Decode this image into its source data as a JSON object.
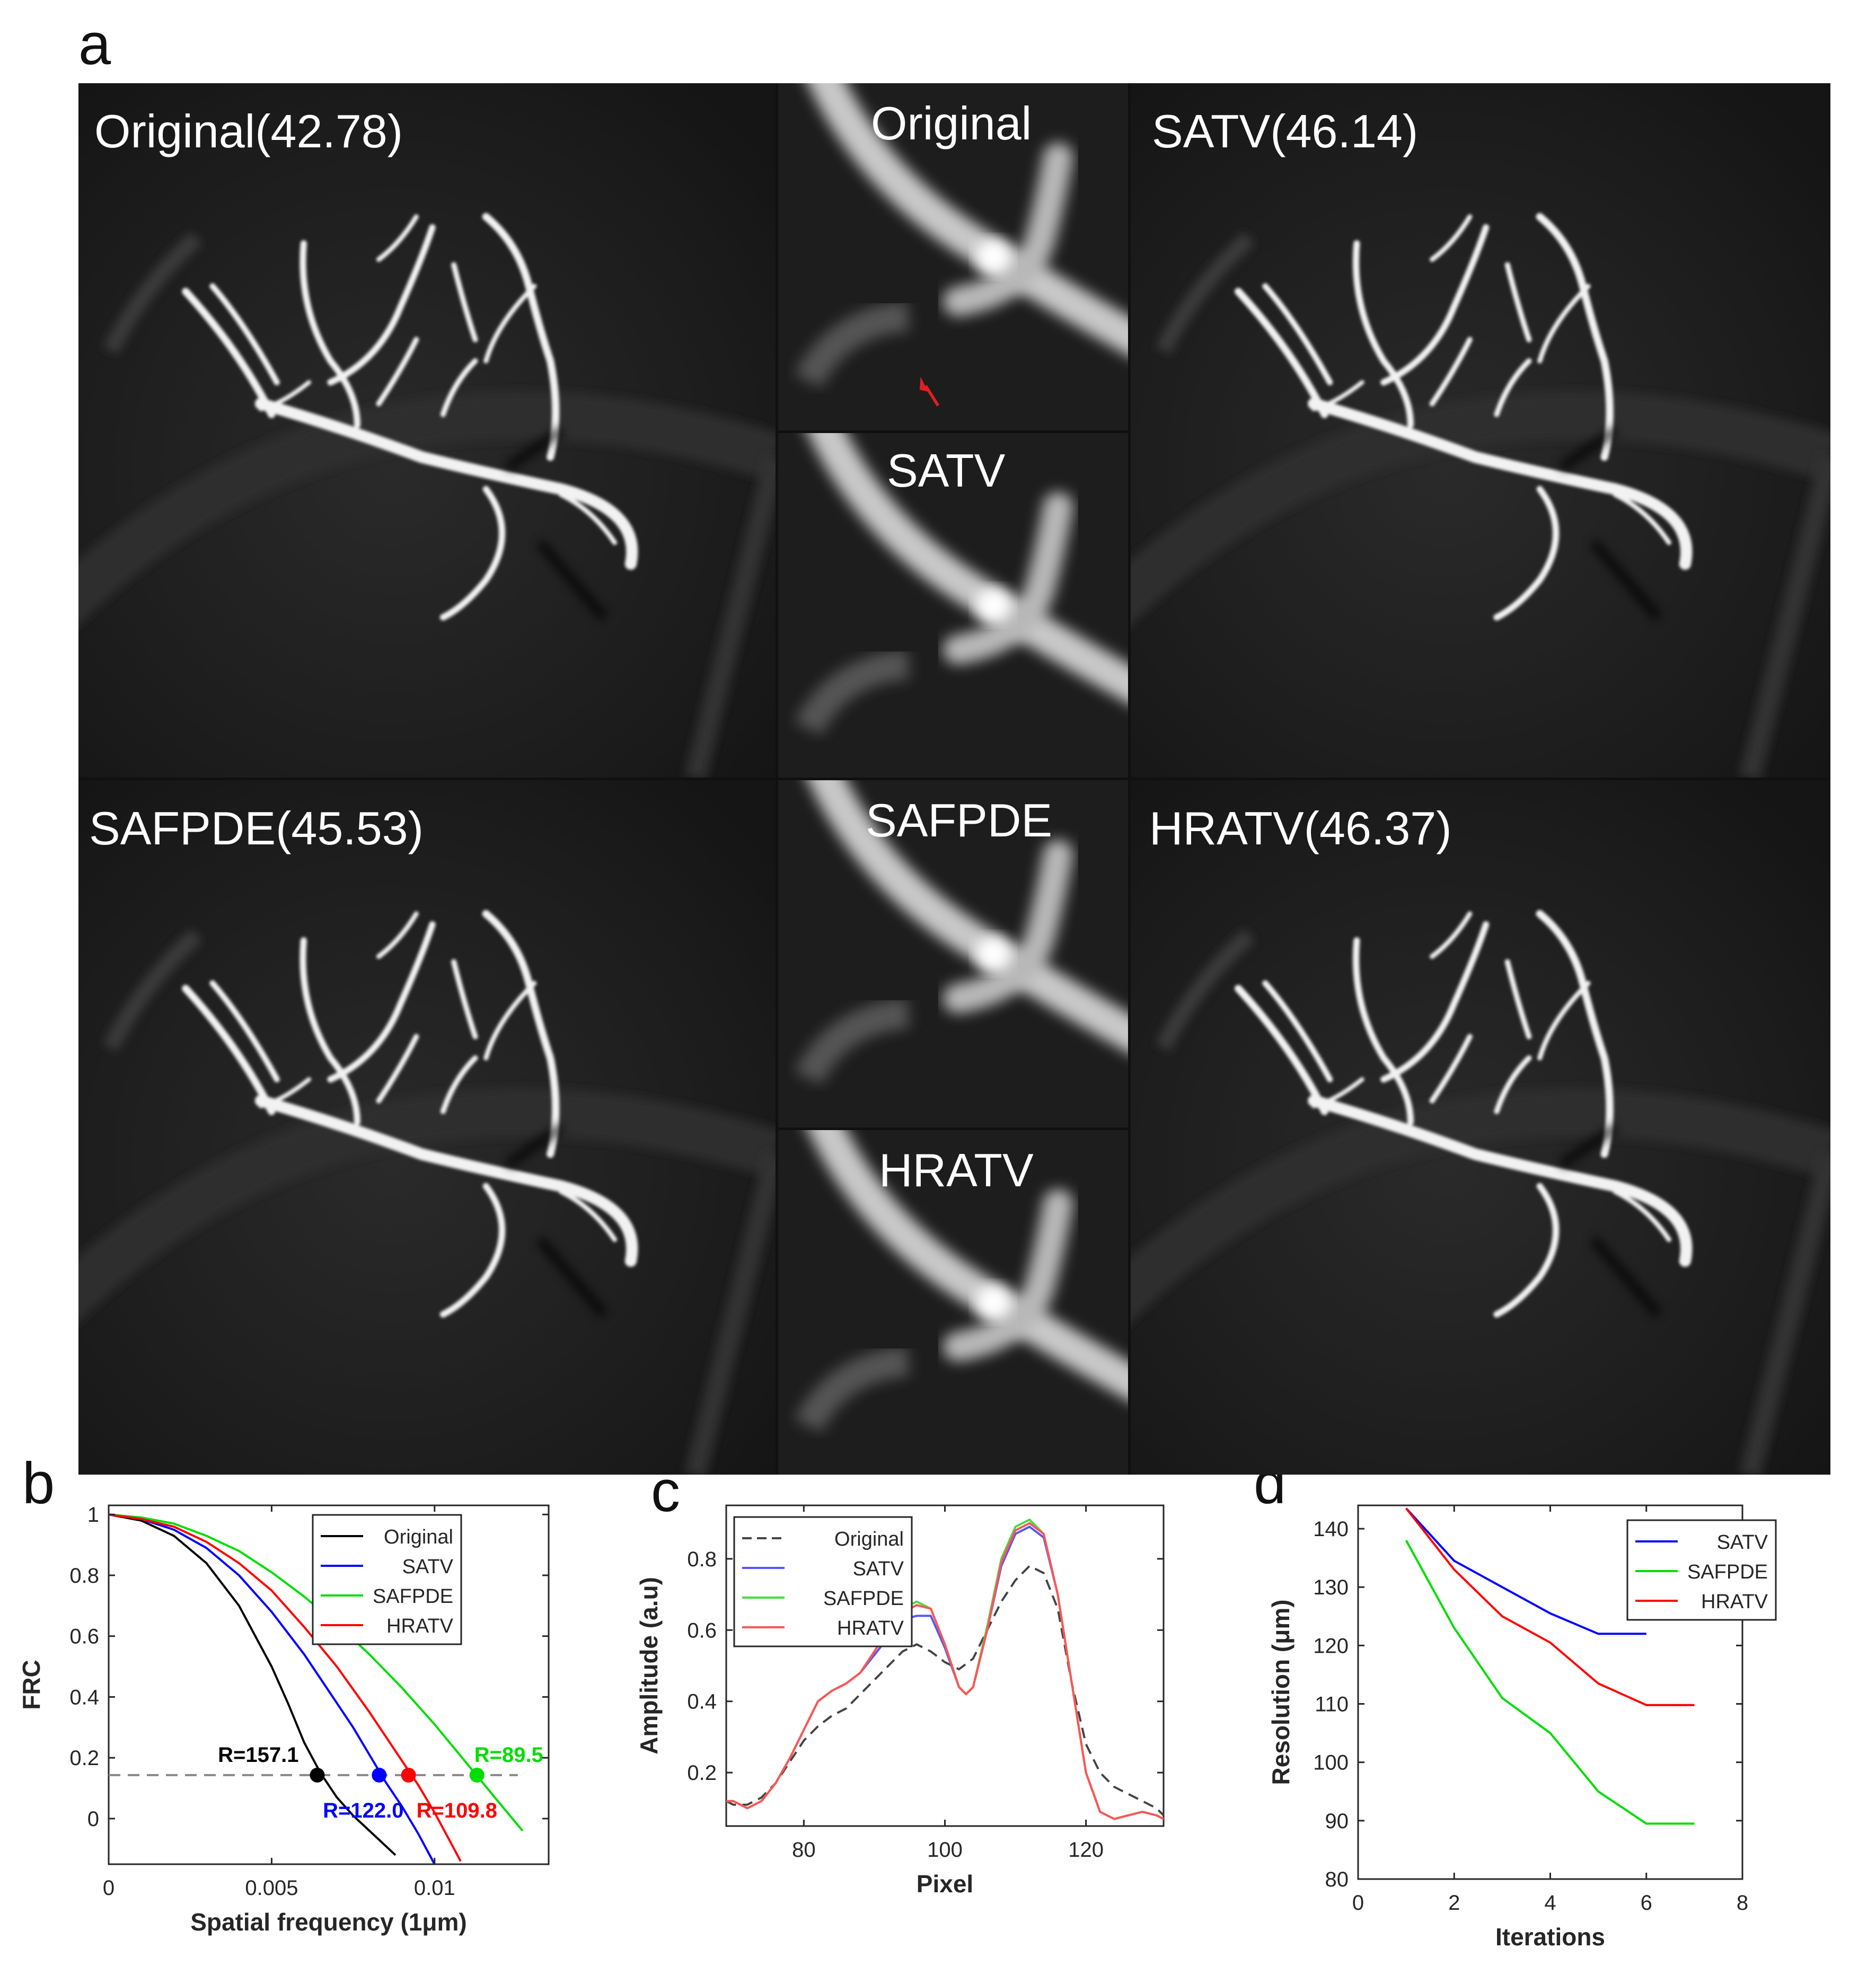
{
  "panels": {
    "a": "a",
    "b": "b",
    "c": "c",
    "d": "d"
  },
  "images": {
    "original_label": "Original(42.78)",
    "satv_label": "SATV(46.14)",
    "safpde_label": "SAFPDE(45.53)",
    "hratv_label": "HRATV(46.37)",
    "zoom_original": "Original",
    "zoom_satv": "SATV",
    "zoom_safpde": "SAFPDE",
    "zoom_hratv": "HRATV",
    "arrow_color": "#e02020"
  },
  "chart_data": [
    {
      "id": "b",
      "type": "line",
      "xlabel": "Spatial frequency (1μm)",
      "ylabel": "FRC",
      "xlim": [
        0,
        0.0135
      ],
      "ylim": [
        -0.15,
        1.03
      ],
      "xticks": [
        0,
        0.005,
        0.01
      ],
      "xtick_labels": [
        "0",
        "0.005",
        "0.01"
      ],
      "yticks": [
        0,
        0.2,
        0.4,
        0.6,
        0.8,
        1
      ],
      "ytick_labels": [
        "0",
        "0.2",
        "0.4",
        "0.6",
        "0.8",
        "1"
      ],
      "threshold": 0.143,
      "legend_position": "top-right",
      "series": [
        {
          "name": "Original",
          "color": "#000000",
          "x": [
            0,
            0.001,
            0.002,
            0.003,
            0.004,
            0.005,
            0.0055,
            0.006,
            0.0065,
            0.007,
            0.0075,
            0.008,
            0.0085,
            0.0088
          ],
          "y": [
            1,
            0.98,
            0.93,
            0.84,
            0.7,
            0.5,
            0.38,
            0.25,
            0.15,
            0.07,
            0.01,
            -0.04,
            -0.09,
            -0.12
          ]
        },
        {
          "name": "SATV",
          "color": "#0000ff",
          "x": [
            0,
            0.001,
            0.002,
            0.003,
            0.004,
            0.005,
            0.006,
            0.007,
            0.0075,
            0.008,
            0.0085,
            0.009,
            0.0095,
            0.01
          ],
          "y": [
            1,
            0.985,
            0.95,
            0.89,
            0.8,
            0.68,
            0.54,
            0.38,
            0.3,
            0.21,
            0.12,
            0.04,
            -0.05,
            -0.15
          ]
        },
        {
          "name": "SAFPDE",
          "color": "#00dd00",
          "x": [
            0,
            0.001,
            0.002,
            0.003,
            0.004,
            0.005,
            0.006,
            0.007,
            0.008,
            0.009,
            0.01,
            0.011,
            0.012,
            0.0127
          ],
          "y": [
            1,
            0.99,
            0.97,
            0.93,
            0.88,
            0.81,
            0.73,
            0.64,
            0.54,
            0.43,
            0.31,
            0.18,
            0.05,
            -0.04
          ]
        },
        {
          "name": "HRATV",
          "color": "#ff0000",
          "x": [
            0,
            0.001,
            0.002,
            0.003,
            0.004,
            0.005,
            0.006,
            0.007,
            0.008,
            0.009,
            0.0095,
            0.01,
            0.0105,
            0.0108
          ],
          "y": [
            1,
            0.985,
            0.96,
            0.91,
            0.84,
            0.75,
            0.63,
            0.5,
            0.35,
            0.19,
            0.11,
            0.02,
            -0.08,
            -0.14
          ]
        }
      ],
      "markers": [
        {
          "label": "R=157.1",
          "x": 0.0064,
          "y": 0.143,
          "color": "#000000",
          "position": "above-left"
        },
        {
          "label": "R=122.0",
          "x": 0.0083,
          "y": 0.143,
          "color": "#0000ff",
          "position": "below"
        },
        {
          "label": "R=109.8",
          "x": 0.0092,
          "y": 0.143,
          "color": "#ff0000",
          "position": "below-right"
        },
        {
          "label": "R=89.5",
          "x": 0.0113,
          "y": 0.143,
          "color": "#00dd00",
          "position": "above-right"
        }
      ]
    },
    {
      "id": "c",
      "type": "line",
      "xlabel": "Pixel",
      "ylabel": "Amplitude (a.u)",
      "xlim": [
        69,
        131
      ],
      "ylim": [
        0.05,
        0.95
      ],
      "xticks": [
        80,
        100,
        120
      ],
      "xtick_labels": [
        "80",
        "100",
        "120"
      ],
      "yticks": [
        0.2,
        0.4,
        0.6,
        0.8
      ],
      "ytick_labels": [
        "0.2",
        "0.4",
        "0.6",
        "0.8"
      ],
      "legend_position": "top-left",
      "series": [
        {
          "name": "Original",
          "color": "#444444",
          "dash": true,
          "x": [
            69,
            70,
            72,
            74,
            76,
            78,
            80,
            82,
            84,
            86,
            88,
            90,
            92,
            94,
            96,
            98,
            100,
            102,
            104,
            106,
            108,
            110,
            112,
            114,
            116,
            118,
            120,
            122,
            124,
            126,
            128,
            130,
            131
          ],
          "y": [
            0.12,
            0.11,
            0.11,
            0.13,
            0.17,
            0.23,
            0.29,
            0.33,
            0.36,
            0.38,
            0.42,
            0.46,
            0.5,
            0.54,
            0.56,
            0.54,
            0.51,
            0.49,
            0.52,
            0.6,
            0.68,
            0.74,
            0.78,
            0.76,
            0.66,
            0.45,
            0.28,
            0.2,
            0.16,
            0.14,
            0.12,
            0.1,
            0.08
          ]
        },
        {
          "name": "SATV",
          "color": "#5555ff",
          "x": [
            69,
            70,
            72,
            74,
            76,
            78,
            80,
            82,
            84,
            86,
            88,
            90,
            92,
            94,
            96,
            98,
            100,
            102,
            103,
            104,
            106,
            108,
            110,
            112,
            114,
            116,
            118,
            120,
            122,
            124,
            126,
            128,
            130,
            131
          ],
          "y": [
            0.12,
            0.12,
            0.1,
            0.12,
            0.17,
            0.24,
            0.32,
            0.4,
            0.43,
            0.45,
            0.48,
            0.53,
            0.58,
            0.63,
            0.64,
            0.64,
            0.55,
            0.44,
            0.42,
            0.44,
            0.6,
            0.78,
            0.87,
            0.89,
            0.86,
            0.7,
            0.45,
            0.2,
            0.09,
            0.07,
            0.08,
            0.09,
            0.08,
            0.07
          ]
        },
        {
          "name": "SAFPDE",
          "color": "#44dd44",
          "x": [
            69,
            70,
            72,
            74,
            76,
            78,
            80,
            82,
            84,
            86,
            88,
            90,
            92,
            94,
            96,
            98,
            100,
            102,
            103,
            104,
            106,
            108,
            110,
            112,
            114,
            116,
            118,
            120,
            122,
            124,
            126,
            128,
            130,
            131
          ],
          "y": [
            0.12,
            0.12,
            0.1,
            0.12,
            0.17,
            0.24,
            0.32,
            0.4,
            0.43,
            0.45,
            0.48,
            0.54,
            0.6,
            0.66,
            0.68,
            0.66,
            0.56,
            0.44,
            0.42,
            0.44,
            0.61,
            0.8,
            0.89,
            0.91,
            0.87,
            0.7,
            0.45,
            0.2,
            0.09,
            0.07,
            0.08,
            0.09,
            0.08,
            0.07
          ]
        },
        {
          "name": "HRATV",
          "color": "#ff5555",
          "x": [
            69,
            70,
            72,
            74,
            76,
            78,
            80,
            82,
            84,
            86,
            88,
            90,
            92,
            94,
            96,
            98,
            100,
            102,
            103,
            104,
            106,
            108,
            110,
            112,
            114,
            116,
            118,
            120,
            122,
            124,
            126,
            128,
            130,
            131
          ],
          "y": [
            0.12,
            0.12,
            0.1,
            0.12,
            0.17,
            0.24,
            0.32,
            0.4,
            0.43,
            0.45,
            0.48,
            0.54,
            0.6,
            0.65,
            0.67,
            0.66,
            0.56,
            0.44,
            0.42,
            0.44,
            0.6,
            0.79,
            0.88,
            0.9,
            0.87,
            0.7,
            0.45,
            0.2,
            0.09,
            0.07,
            0.08,
            0.09,
            0.08,
            0.07
          ]
        }
      ]
    },
    {
      "id": "d",
      "type": "line",
      "xlabel": "Iterations",
      "ylabel": "Resolution (μm)",
      "xlim": [
        0,
        8
      ],
      "ylim": [
        80,
        144
      ],
      "xticks": [
        0,
        2,
        4,
        6,
        8
      ],
      "xtick_labels": [
        "0",
        "2",
        "4",
        "6",
        "8"
      ],
      "yticks": [
        80,
        90,
        100,
        110,
        120,
        130,
        140
      ],
      "ytick_labels": [
        "80",
        "90",
        "100",
        "110",
        "120",
        "130",
        "140"
      ],
      "legend_position": "top-right",
      "series": [
        {
          "name": "SATV",
          "color": "#0000ff",
          "x": [
            1,
            2,
            3,
            4,
            5,
            6
          ],
          "y": [
            143.5,
            134.5,
            130,
            125.5,
            122,
            122
          ]
        },
        {
          "name": "SAFPDE",
          "color": "#00dd00",
          "x": [
            1,
            2,
            3,
            4,
            5,
            6,
            7
          ],
          "y": [
            138,
            123,
            111,
            105,
            95,
            89.5,
            89.5
          ]
        },
        {
          "name": "HRATV",
          "color": "#ff0000",
          "x": [
            1,
            2,
            3,
            4,
            5,
            6,
            7
          ],
          "y": [
            143.5,
            133,
            125,
            120.5,
            113.5,
            109.8,
            109.8
          ]
        }
      ]
    }
  ]
}
